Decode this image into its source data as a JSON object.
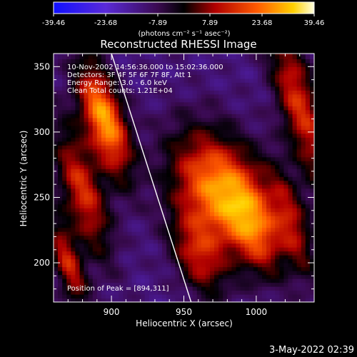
{
  "chart_data": {
    "type": "heatmap",
    "title": "Reconstructed RHESSI Image",
    "xlabel": "Heliocentric X (arcsec)",
    "ylabel": "Heliocentric Y (arcsec)",
    "xlim": [
      860,
      1040
    ],
    "ylim": [
      170,
      360
    ],
    "x_ticks": [
      900,
      950,
      1000
    ],
    "y_ticks": [
      200,
      250,
      300,
      350
    ],
    "colorbar": {
      "ticks": [
        "-39.46",
        "-23.68",
        "-7.89",
        "7.89",
        "23.68",
        "39.46"
      ],
      "unit_label": "(photons cm⁻² s⁻¹ asec⁻²)",
      "range": [
        -39.46,
        39.46
      ]
    },
    "annotations": [
      "10-Nov-2002 14:56:36.000 to 15:02:36.000",
      "Detectors: 3F 4F 5F 6F 7F 8F, Att 1",
      "Energy Range: 3.0 - 6.0 keV",
      "Clean    Total counts: 1.21E+04"
    ],
    "peak_label": "Position of Peak = [894,311]",
    "peak": [
      894,
      311
    ],
    "limb_line": [
      [
        900,
        360
      ],
      [
        955,
        170
      ]
    ],
    "features": [
      {
        "x": 895,
        "y": 310,
        "sx": 10,
        "sy": 30,
        "amp": 1.05
      },
      {
        "x": 880,
        "y": 255,
        "sx": 10,
        "sy": 35,
        "amp": 0.7
      },
      {
        "x": 870,
        "y": 200,
        "sx": 7,
        "sy": 25,
        "amp": 0.65
      },
      {
        "x": 975,
        "y": 255,
        "sx": 22,
        "sy": 32,
        "amp": 1.0
      },
      {
        "x": 960,
        "y": 205,
        "sx": 12,
        "sy": 22,
        "amp": 0.55
      },
      {
        "x": 1000,
        "y": 225,
        "sx": 12,
        "sy": 25,
        "amp": 0.55
      },
      {
        "x": 1030,
        "y": 320,
        "sx": 10,
        "sy": 45,
        "amp": 0.7
      },
      {
        "x": 1025,
        "y": 230,
        "sx": 8,
        "sy": 30,
        "amp": 0.5
      }
    ]
  },
  "footer": {
    "date": "3-May-2022 02:39"
  }
}
